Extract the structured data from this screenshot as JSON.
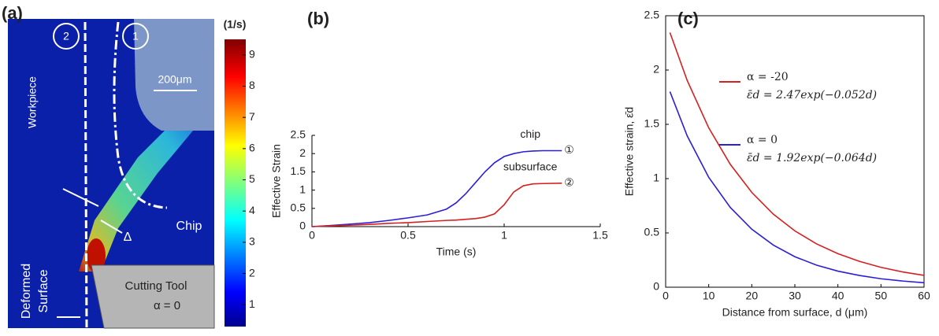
{
  "panel_a": {
    "label": "(a)",
    "markers": [
      "2",
      "1"
    ],
    "scale_bar": "200μm",
    "texts": {
      "workpiece": "Workpiece",
      "chip": "Chip",
      "delta": "Δ",
      "deformed_1": "Deformed",
      "deformed_2": "Surface",
      "tool": "Cutting Tool",
      "rake": "α = 0"
    },
    "colorbar": {
      "title": "(1/s)",
      "lim": [
        0.3,
        9.5
      ],
      "ticks": [
        1,
        2,
        3,
        4,
        5,
        6,
        7,
        8,
        9
      ]
    }
  },
  "chart_data": [
    {
      "type": "line",
      "title": "(b)",
      "x_label": "Time (s)",
      "y_label": "Effective Strain",
      "x": [
        0,
        0.1,
        0.2,
        0.3,
        0.4,
        0.5,
        0.6,
        0.7,
        0.75,
        0.8,
        0.85,
        0.9,
        0.95,
        1.0,
        1.05,
        1.1,
        1.15,
        1.2,
        1.3
      ],
      "series": [
        {
          "name": "chip",
          "marker": "①",
          "color": "#2b1fd6",
          "values": [
            0,
            0.03,
            0.07,
            0.11,
            0.17,
            0.24,
            0.32,
            0.48,
            0.65,
            0.9,
            1.2,
            1.5,
            1.75,
            1.92,
            2.0,
            2.05,
            2.07,
            2.08,
            2.08
          ]
        },
        {
          "name": "subsurface",
          "marker": "②",
          "color": "#d42020",
          "values": [
            0,
            0.02,
            0.04,
            0.06,
            0.09,
            0.11,
            0.14,
            0.17,
            0.18,
            0.2,
            0.22,
            0.26,
            0.35,
            0.6,
            0.95,
            1.12,
            1.17,
            1.18,
            1.19
          ]
        }
      ],
      "xlim": [
        0,
        1.5
      ],
      "xticks": [
        0,
        0.5,
        1,
        1.5
      ],
      "ylim": [
        0,
        2.5
      ],
      "yticks": [
        0,
        0.5,
        1,
        1.5,
        2,
        2.5
      ]
    },
    {
      "type": "line",
      "title": "(c)",
      "x_label": "Distance from surface, d (μm)",
      "y_label": "Effective strain, ε̄d",
      "x": [
        1,
        5,
        10,
        15,
        20,
        25,
        30,
        35,
        40,
        45,
        50,
        55,
        60
      ],
      "series": [
        {
          "name": "α = -20",
          "equation": "ε̄d = 2.47exp(−0.052d)",
          "color": "#d42020",
          "values": [
            2.345,
            1.904,
            1.468,
            1.132,
            0.873,
            0.673,
            0.519,
            0.4,
            0.309,
            0.238,
            0.183,
            0.141,
            0.109
          ]
        },
        {
          "name": "α = 0",
          "equation": "ε̄d = 1.92exp(−0.064d)",
          "color": "#2b1fd6",
          "values": [
            1.801,
            1.394,
            1.012,
            0.735,
            0.534,
            0.388,
            0.281,
            0.204,
            0.148,
            0.108,
            0.078,
            0.057,
            0.041
          ]
        }
      ],
      "xlim": [
        0,
        60
      ],
      "xticks": [
        0,
        10,
        20,
        30,
        40,
        50,
        60
      ],
      "ylim": [
        0,
        2.5
      ],
      "yticks": [
        0,
        0.5,
        1,
        1.5,
        2,
        2.5
      ]
    }
  ]
}
